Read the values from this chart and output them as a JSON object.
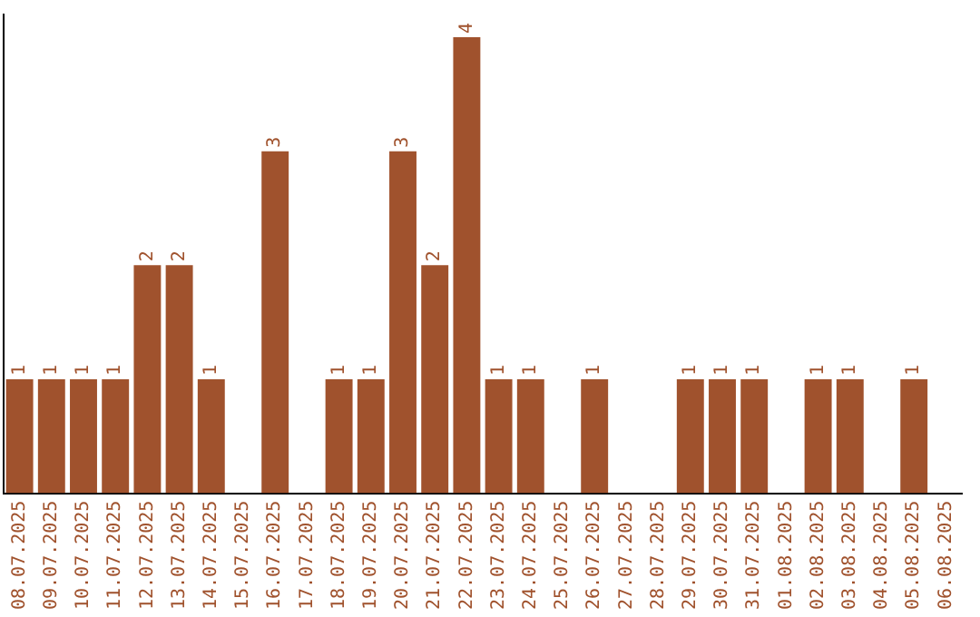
{
  "chart_data": {
    "type": "bar",
    "categories": [
      "08.07.2025",
      "09.07.2025",
      "10.07.2025",
      "11.07.2025",
      "12.07.2025",
      "13.07.2025",
      "14.07.2025",
      "15.07.2025",
      "16.07.2025",
      "17.07.2025",
      "18.07.2025",
      "19.07.2025",
      "20.07.2025",
      "21.07.2025",
      "22.07.2025",
      "23.07.2025",
      "24.07.2025",
      "25.07.2025",
      "26.07.2025",
      "27.07.2025",
      "28.07.2025",
      "29.07.2025",
      "30.07.2025",
      "31.07.2025",
      "01.08.2025",
      "02.08.2025",
      "03.08.2025",
      "04.08.2025",
      "05.08.2025",
      "06.08.2025"
    ],
    "values": [
      1,
      1,
      1,
      1,
      2,
      2,
      1,
      0,
      3,
      0,
      1,
      1,
      3,
      2,
      4,
      1,
      1,
      0,
      1,
      0,
      0,
      1,
      1,
      1,
      0,
      1,
      1,
      0,
      1,
      0
    ],
    "value_labels": [
      "1",
      "1",
      "1",
      "1",
      "2",
      "2",
      "1",
      null,
      "3",
      null,
      "1",
      "1",
      "3",
      "2",
      "4",
      "1",
      "1",
      null,
      "1",
      null,
      null,
      "1",
      "1",
      "1",
      null,
      "1",
      "1",
      null,
      "1",
      null
    ],
    "color": "#a0522d",
    "ylim": [
      0,
      4.2
    ],
    "grid": false,
    "legend": false,
    "tick_labels": "x"
  }
}
